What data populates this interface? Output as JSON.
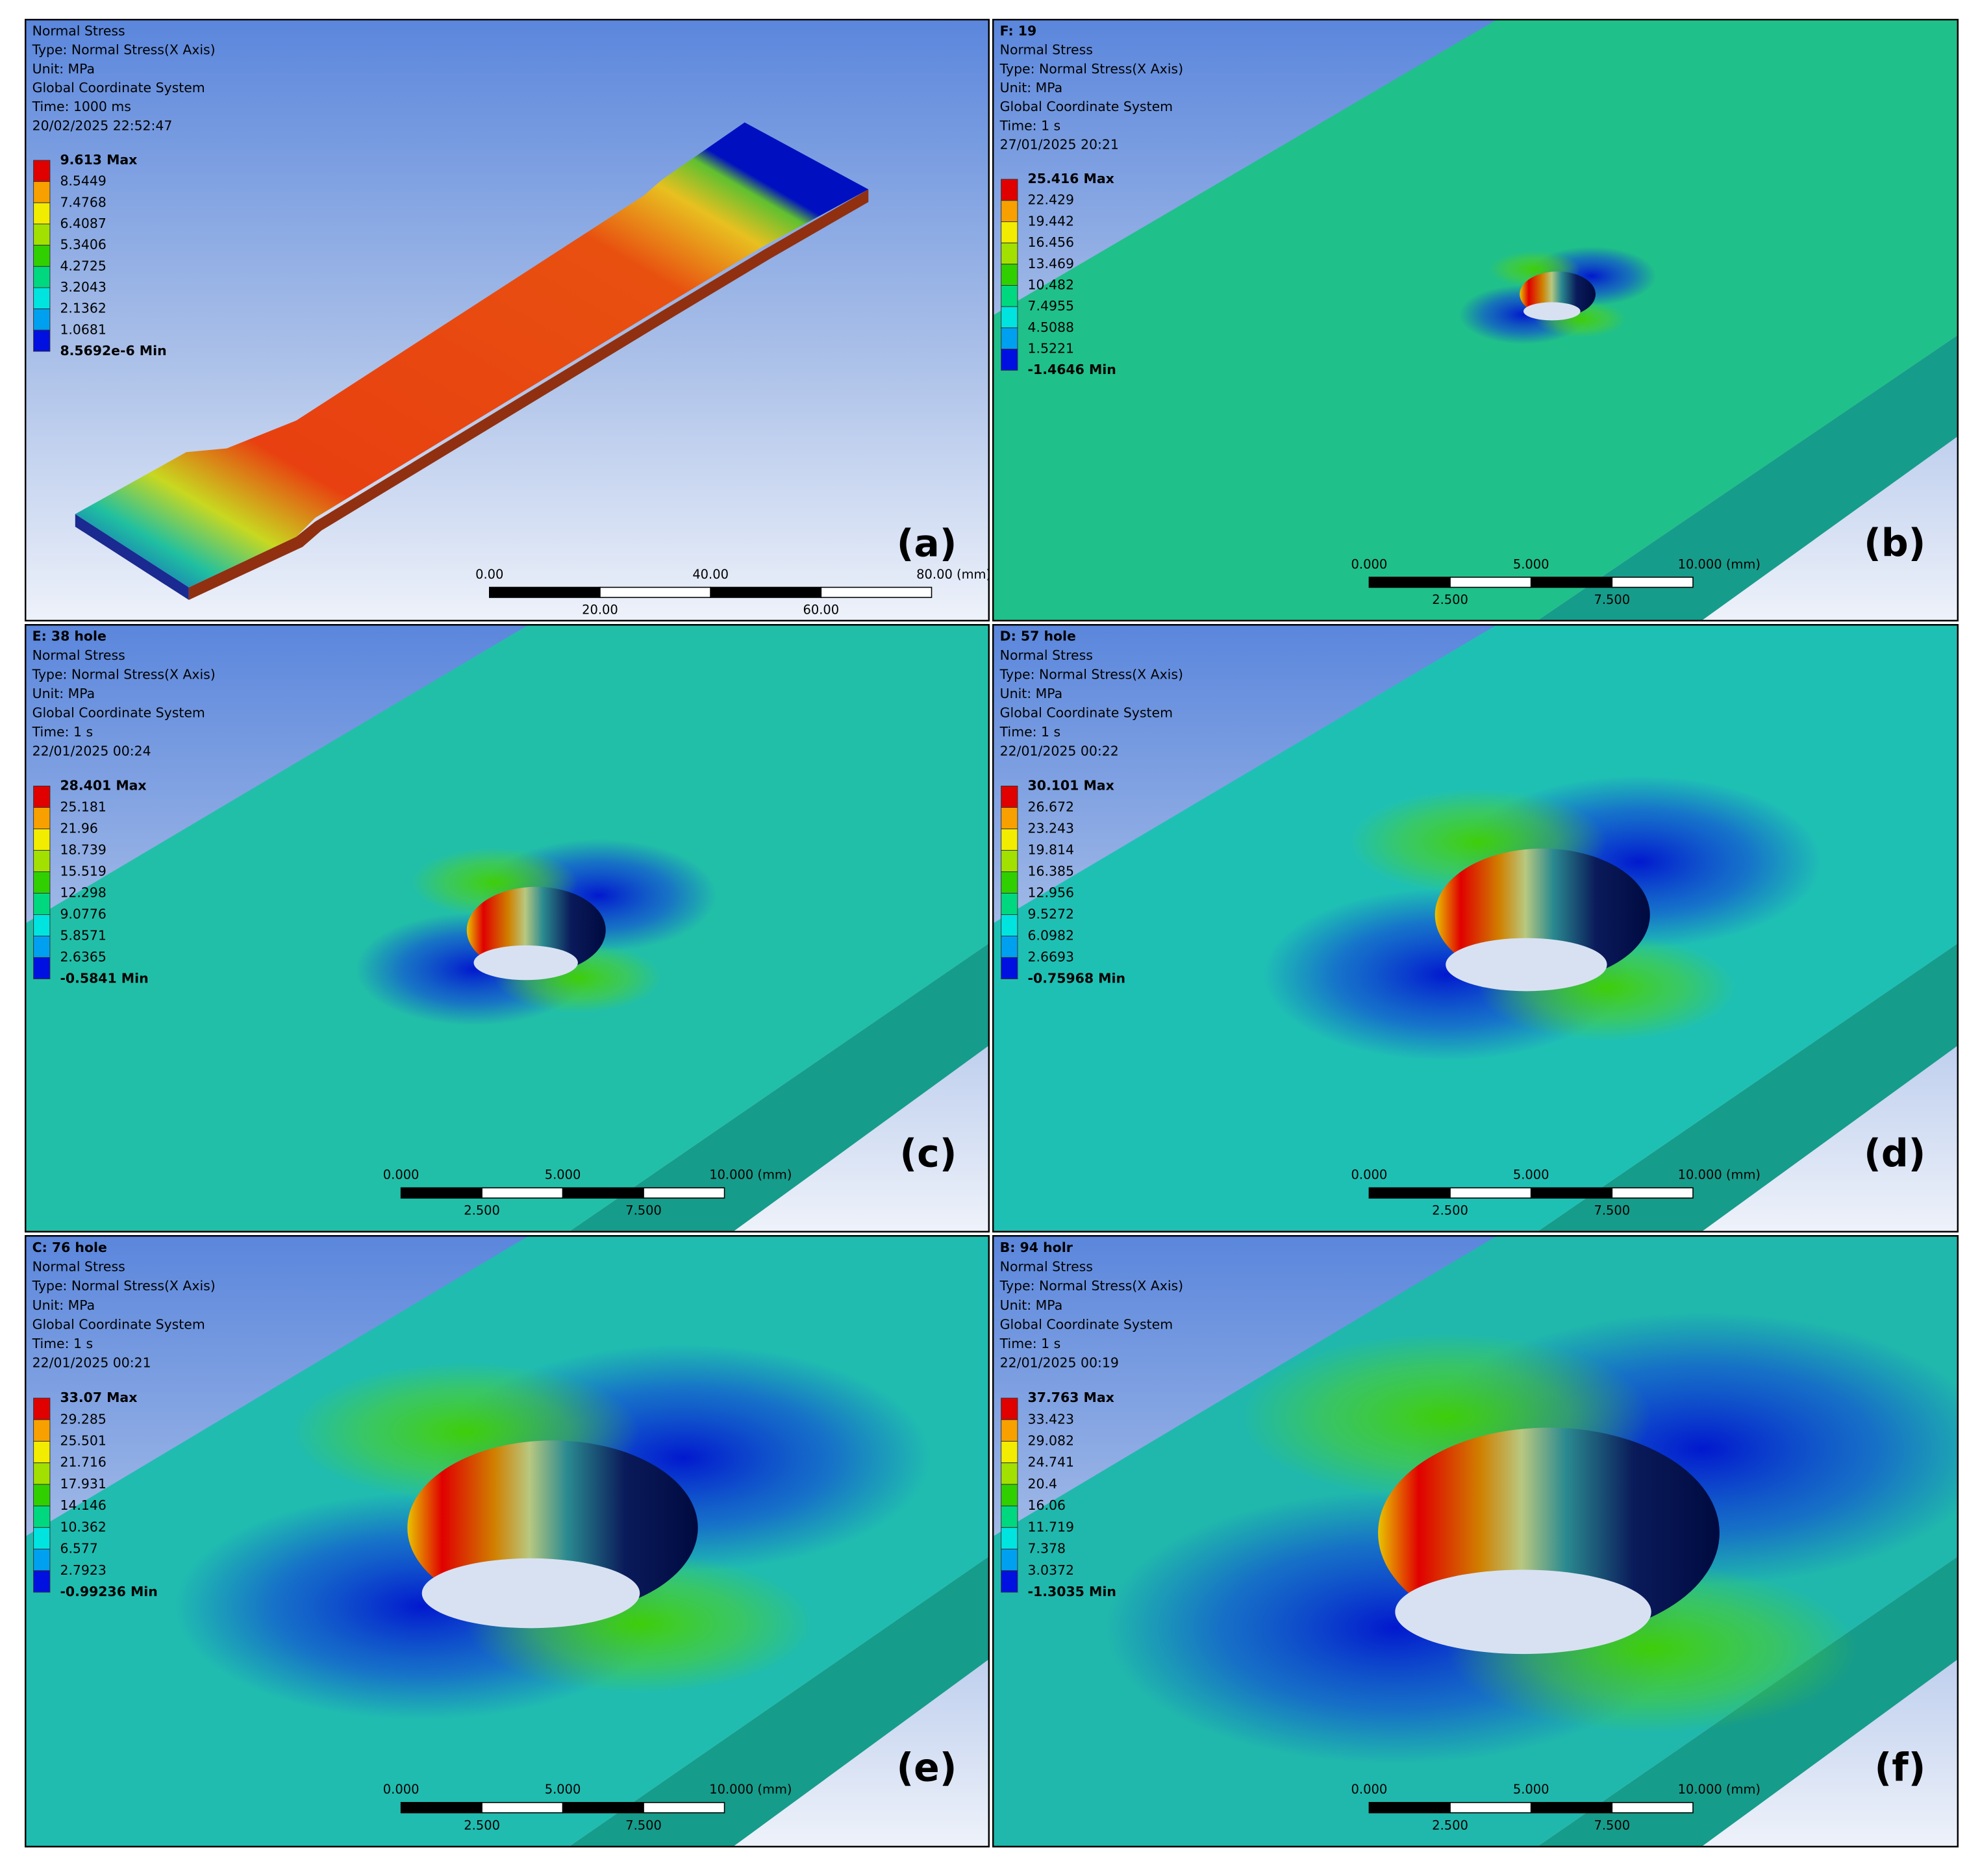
{
  "panels": [
    {
      "label": "(a)",
      "lines": [
        "Normal Stress",
        "Type: Normal Stress(X Axis)",
        "Unit: MPa",
        "Global Coordinate System",
        "Time: 1000 ms",
        "20/02/2025 22:52:47"
      ],
      "legend": [
        "9.613 Max",
        "8.5449",
        "7.4768",
        "6.4087",
        "5.3406",
        "4.2725",
        "3.2043",
        "2.1362",
        "1.0681",
        "8.5692e-6 Min"
      ],
      "scale_top": [
        "0.00",
        "40.00",
        "80.00 (mm)"
      ],
      "scale_bottom": [
        "20.00",
        "60.00"
      ]
    },
    {
      "label": "(b)",
      "title": "F: 19",
      "lines": [
        "Normal Stress",
        "Type: Normal Stress(X Axis)",
        "Unit: MPa",
        "Global Coordinate System",
        "Time: 1 s",
        "27/01/2025 20:21"
      ],
      "legend": [
        "25.416 Max",
        "22.429",
        "19.442",
        "16.456",
        "13.469",
        "10.482",
        "7.4955",
        "4.5088",
        "1.5221",
        "-1.4646 Min"
      ],
      "scale_top": [
        "0.000",
        "5.000",
        "10.000 (mm)"
      ],
      "scale_bottom": [
        "2.500",
        "7.500"
      ]
    },
    {
      "label": "(c)",
      "title": "E: 38 hole",
      "lines": [
        "Normal Stress",
        "Type: Normal Stress(X Axis)",
        "Unit: MPa",
        "Global Coordinate System",
        "Time: 1 s",
        "22/01/2025 00:24"
      ],
      "legend": [
        "28.401 Max",
        "25.181",
        "21.96",
        "18.739",
        "15.519",
        "12.298",
        "9.0776",
        "5.8571",
        "2.6365",
        "-0.5841 Min"
      ],
      "scale_top": [
        "0.000",
        "5.000",
        "10.000 (mm)"
      ],
      "scale_bottom": [
        "2.500",
        "7.500"
      ]
    },
    {
      "label": "(d)",
      "title": "D: 57 hole",
      "lines": [
        "Normal Stress",
        "Type: Normal Stress(X Axis)",
        "Unit: MPa",
        "Global Coordinate System",
        "Time: 1 s",
        "22/01/2025 00:22"
      ],
      "legend": [
        "30.101 Max",
        "26.672",
        "23.243",
        "19.814",
        "16.385",
        "12.956",
        "9.5272",
        "6.0982",
        "2.6693",
        "-0.75968 Min"
      ],
      "scale_top": [
        "0.000",
        "5.000",
        "10.000 (mm)"
      ],
      "scale_bottom": [
        "2.500",
        "7.500"
      ]
    },
    {
      "label": "(e)",
      "title": "C: 76 hole",
      "lines": [
        "Normal Stress",
        "Type: Normal Stress(X Axis)",
        "Unit: MPa",
        "Global Coordinate System",
        "Time: 1 s",
        "22/01/2025 00:21"
      ],
      "legend": [
        "33.07 Max",
        "29.285",
        "25.501",
        "21.716",
        "17.931",
        "14.146",
        "10.362",
        "6.577",
        "2.7923",
        "-0.99236 Min"
      ],
      "scale_top": [
        "0.000",
        "5.000",
        "10.000 (mm)"
      ],
      "scale_bottom": [
        "2.500",
        "7.500"
      ]
    },
    {
      "label": "(f)",
      "title": "B: 94 holr",
      "lines": [
        "Normal Stress",
        "Type: Normal Stress(X Axis)",
        "Unit: MPa",
        "Global Coordinate System",
        "Time: 1 s",
        "22/01/2025 00:19"
      ],
      "legend": [
        "37.763 Max",
        "33.423",
        "29.082",
        "24.741",
        "20.4",
        "16.06",
        "11.719",
        "7.378",
        "3.0372",
        "-1.3035 Min"
      ],
      "scale_top": [
        "0.000",
        "5.000",
        "10.000 (mm)"
      ],
      "scale_bottom": [
        "2.500",
        "7.500"
      ]
    }
  ]
}
